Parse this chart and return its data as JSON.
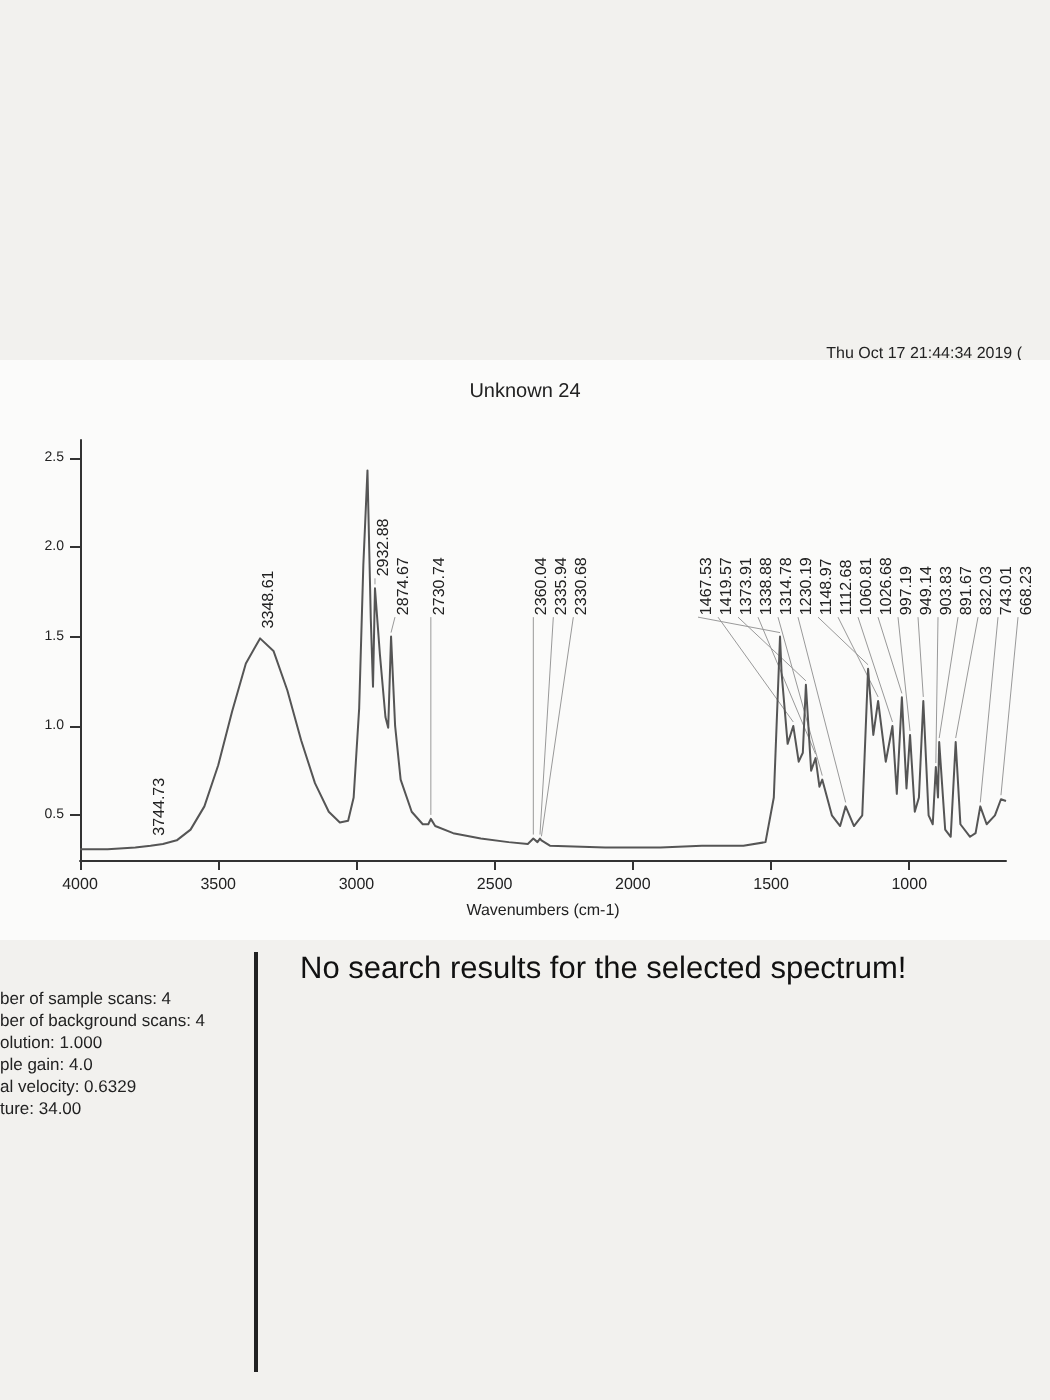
{
  "chart_data": {
    "type": "line",
    "title": "Unknown 24",
    "xlabel": "Wavenumbers (cm-1)",
    "xlim": [
      4000,
      650
    ],
    "xticks": [
      4000,
      3500,
      3000,
      2500,
      2000,
      1500,
      1000
    ],
    "ylim": [
      0.25,
      2.6
    ],
    "yticks": [
      0.5,
      {
        "value": 1,
        "label": "1.0"
      },
      1.5,
      {
        "value": 2,
        "label": "2.0"
      },
      2.5
    ],
    "grid": false,
    "marker": "none",
    "line_style": "solid",
    "x": [
      4000,
      3900,
      3800,
      3744.73,
      3700,
      3650,
      3600,
      3550,
      3500,
      3450,
      3400,
      3348.61,
      3300,
      3250,
      3200,
      3150,
      3100,
      3060,
      3030,
      3010,
      2990,
      2975,
      2960,
      2948,
      2940,
      2932.88,
      2915,
      2895,
      2885,
      2874.67,
      2860,
      2840,
      2800,
      2760,
      2740,
      2730.74,
      2715,
      2650,
      2550,
      2450,
      2380,
      2360.04,
      2345,
      2335.94,
      2330.68,
      2300,
      2100,
      1900,
      1750,
      1600,
      1520,
      1490,
      1467.53,
      1462,
      1440,
      1419.57,
      1400,
      1385,
      1373.91,
      1355,
      1338.88,
      1325,
      1314.78,
      1280,
      1250,
      1230.19,
      1200,
      1170,
      1148.97,
      1130,
      1112.68,
      1085,
      1060.81,
      1045,
      1026.68,
      1010,
      997.19,
      980,
      965,
      949.14,
      930,
      915,
      903.83,
      896,
      891.67,
      870,
      850,
      832.03,
      815,
      780,
      760,
      743.01,
      720,
      690,
      668.23,
      650
    ],
    "series": [
      {
        "color": "#555555",
        "values": [
          0.31,
          0.31,
          0.32,
          0.33,
          0.34,
          0.36,
          0.42,
          0.55,
          0.78,
          1.08,
          1.35,
          1.49,
          1.42,
          1.2,
          0.92,
          0.68,
          0.52,
          0.46,
          0.47,
          0.6,
          1.1,
          1.9,
          2.43,
          1.6,
          1.22,
          1.77,
          1.4,
          1.05,
          0.99,
          1.5,
          1.0,
          0.7,
          0.52,
          0.45,
          0.45,
          0.48,
          0.44,
          0.4,
          0.37,
          0.35,
          0.34,
          0.37,
          0.35,
          0.37,
          0.36,
          0.33,
          0.32,
          0.32,
          0.33,
          0.33,
          0.35,
          0.6,
          1.5,
          1.3,
          0.9,
          1.0,
          0.8,
          0.85,
          1.23,
          0.75,
          0.82,
          0.66,
          0.7,
          0.5,
          0.44,
          0.55,
          0.44,
          0.5,
          1.32,
          0.95,
          1.14,
          0.8,
          1.0,
          0.62,
          1.16,
          0.65,
          0.95,
          0.52,
          0.6,
          1.14,
          0.5,
          0.45,
          0.77,
          0.6,
          0.91,
          0.42,
          0.38,
          0.91,
          0.45,
          0.38,
          0.4,
          0.55,
          0.45,
          0.5,
          0.59,
          0.58
        ]
      }
    ],
    "annotations": [
      "Thu Oct 17 21:44:34 2019 (",
      "No search results for the selected spectrum!",
      "ber of sample scans:  4",
      "ber of background scans:  4",
      "olution:   1.000",
      "ple gain:  4.0",
      "al velocity:  0.6329",
      "ture:  34.00",
      {
        "text": "3744.73",
        "x": 3744.73,
        "y": 0.33
      },
      {
        "text": "3348.61",
        "x": 3348.61,
        "y": 1.49
      },
      {
        "text": "2932.88",
        "x": 2932.88,
        "y": 1.77
      },
      {
        "text": "2874.67",
        "x": 2874.67,
        "y": 1.5
      },
      {
        "text": "2730.74",
        "x": 2730.74,
        "y": 0.48
      },
      {
        "text": "2360.04",
        "x": 2360.04,
        "y": 0.37
      },
      {
        "text": "2335.94",
        "x": 2335.94,
        "y": 0.37
      },
      {
        "text": "2330.68",
        "x": 2330.68,
        "y": 0.36
      },
      {
        "text": "1467.53",
        "x": 1467.53,
        "y": 1.5
      },
      {
        "text": "1419.57",
        "x": 1419.57,
        "y": 1.0
      },
      {
        "text": "1373.91",
        "x": 1373.91,
        "y": 1.23
      },
      {
        "text": "1338.88",
        "x": 1338.88,
        "y": 0.82
      },
      {
        "text": "1314.78",
        "x": 1314.78,
        "y": 0.7
      },
      {
        "text": "1230.19",
        "x": 1230.19,
        "y": 0.55
      },
      {
        "text": "1148.97",
        "x": 1148.97,
        "y": 1.32
      },
      {
        "text": "1112.68",
        "x": 1112.68,
        "y": 1.14
      },
      {
        "text": "1060.81",
        "x": 1060.81,
        "y": 1.0
      },
      {
        "text": "1026.68",
        "x": 1026.68,
        "y": 1.16
      },
      {
        "text": "997.19",
        "x": 997.19,
        "y": 0.95
      },
      {
        "text": "949.14",
        "x": 949.14,
        "y": 1.14
      },
      {
        "text": "903.83",
        "x": 903.83,
        "y": 0.77
      },
      {
        "text": "891.67",
        "x": 891.67,
        "y": 0.91
      },
      {
        "text": "832.03",
        "x": 832.03,
        "y": 0.91
      },
      {
        "text": "743.01",
        "x": 743.01,
        "y": 0.55
      },
      {
        "text": "668.23",
        "x": 668.23,
        "y": 0.59
      }
    ]
  }
}
